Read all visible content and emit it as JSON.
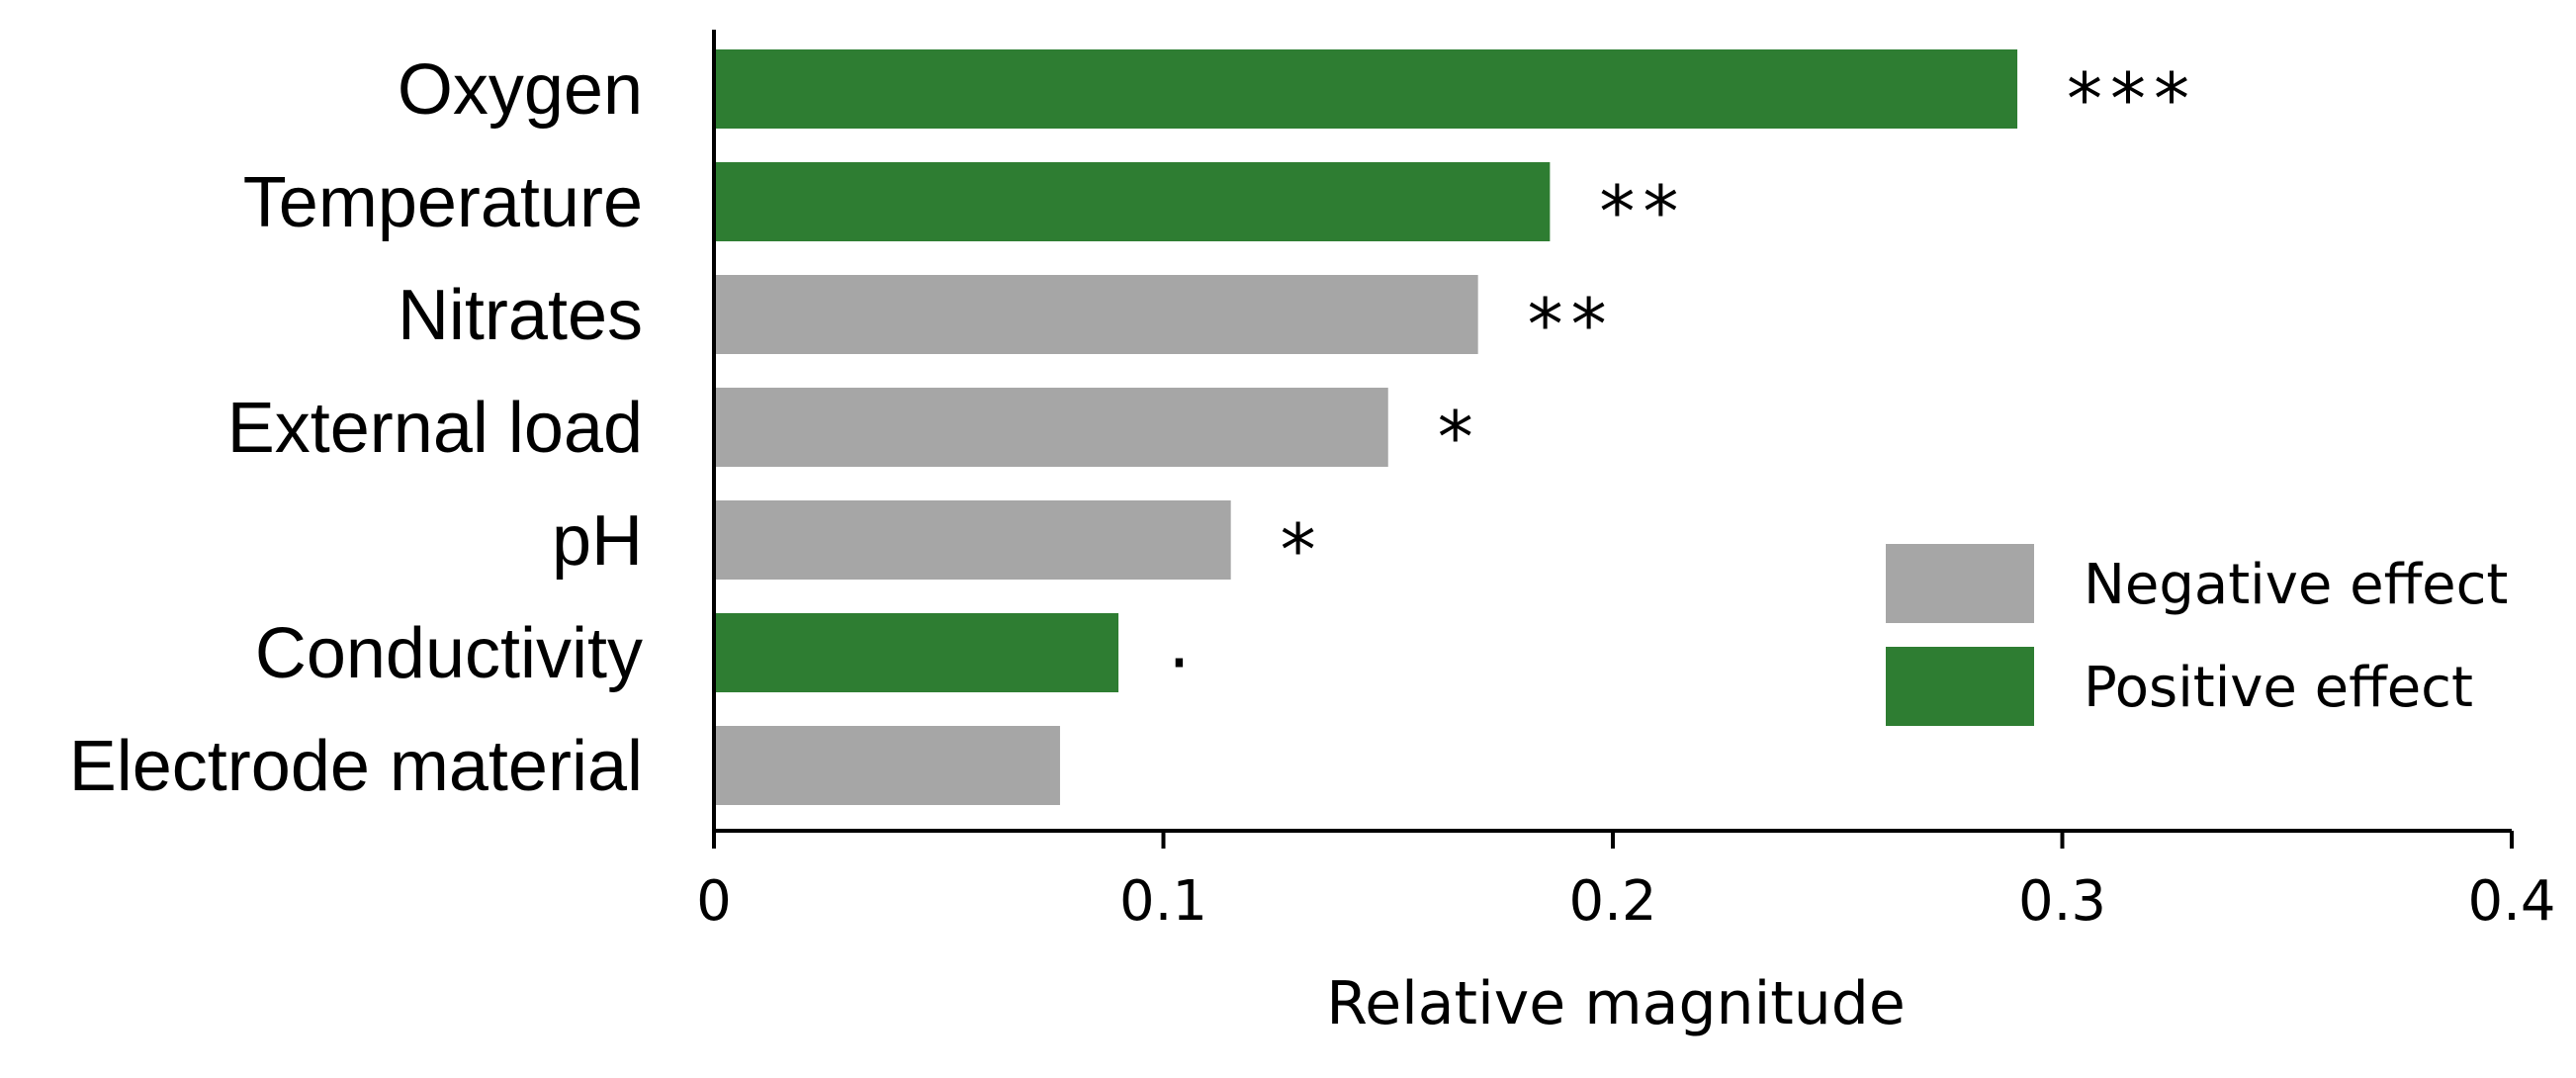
{
  "chart_data": {
    "type": "bar",
    "orientation": "horizontal",
    "title": "",
    "xlabel": "Relative magnitude",
    "ylabel": "",
    "xlim": [
      0,
      0.4
    ],
    "x_ticks": [
      "0",
      "0.1",
      "0.2",
      "0.3",
      "0.4"
    ],
    "x_tick_values": [
      0,
      0.1,
      0.2,
      0.3,
      0.4
    ],
    "grid": false,
    "legend_position": "bottom-right",
    "bars": [
      {
        "category": "Oxygen",
        "value": 0.29,
        "effect": "positive",
        "significance": "***"
      },
      {
        "category": "Temperature",
        "value": 0.186,
        "effect": "positive",
        "significance": "**"
      },
      {
        "category": "Nitrates",
        "value": 0.17,
        "effect": "negative",
        "significance": "**"
      },
      {
        "category": "External load",
        "value": 0.15,
        "effect": "negative",
        "significance": "*"
      },
      {
        "category": "pH",
        "value": 0.115,
        "effect": "negative",
        "significance": "*"
      },
      {
        "category": "Conductivity",
        "value": 0.09,
        "effect": "positive",
        "significance": "·"
      },
      {
        "category": "Electrode material",
        "value": 0.077,
        "effect": "negative",
        "significance": ""
      }
    ],
    "legend": [
      {
        "key": "negative",
        "label": "Negative effect",
        "color": "#a6a6a6"
      },
      {
        "key": "positive",
        "label": "Positive effect",
        "color": "#2e7d32"
      }
    ],
    "colors": {
      "negative": "#a6a6a6",
      "positive": "#2e7d32",
      "axis": "#000000"
    }
  }
}
